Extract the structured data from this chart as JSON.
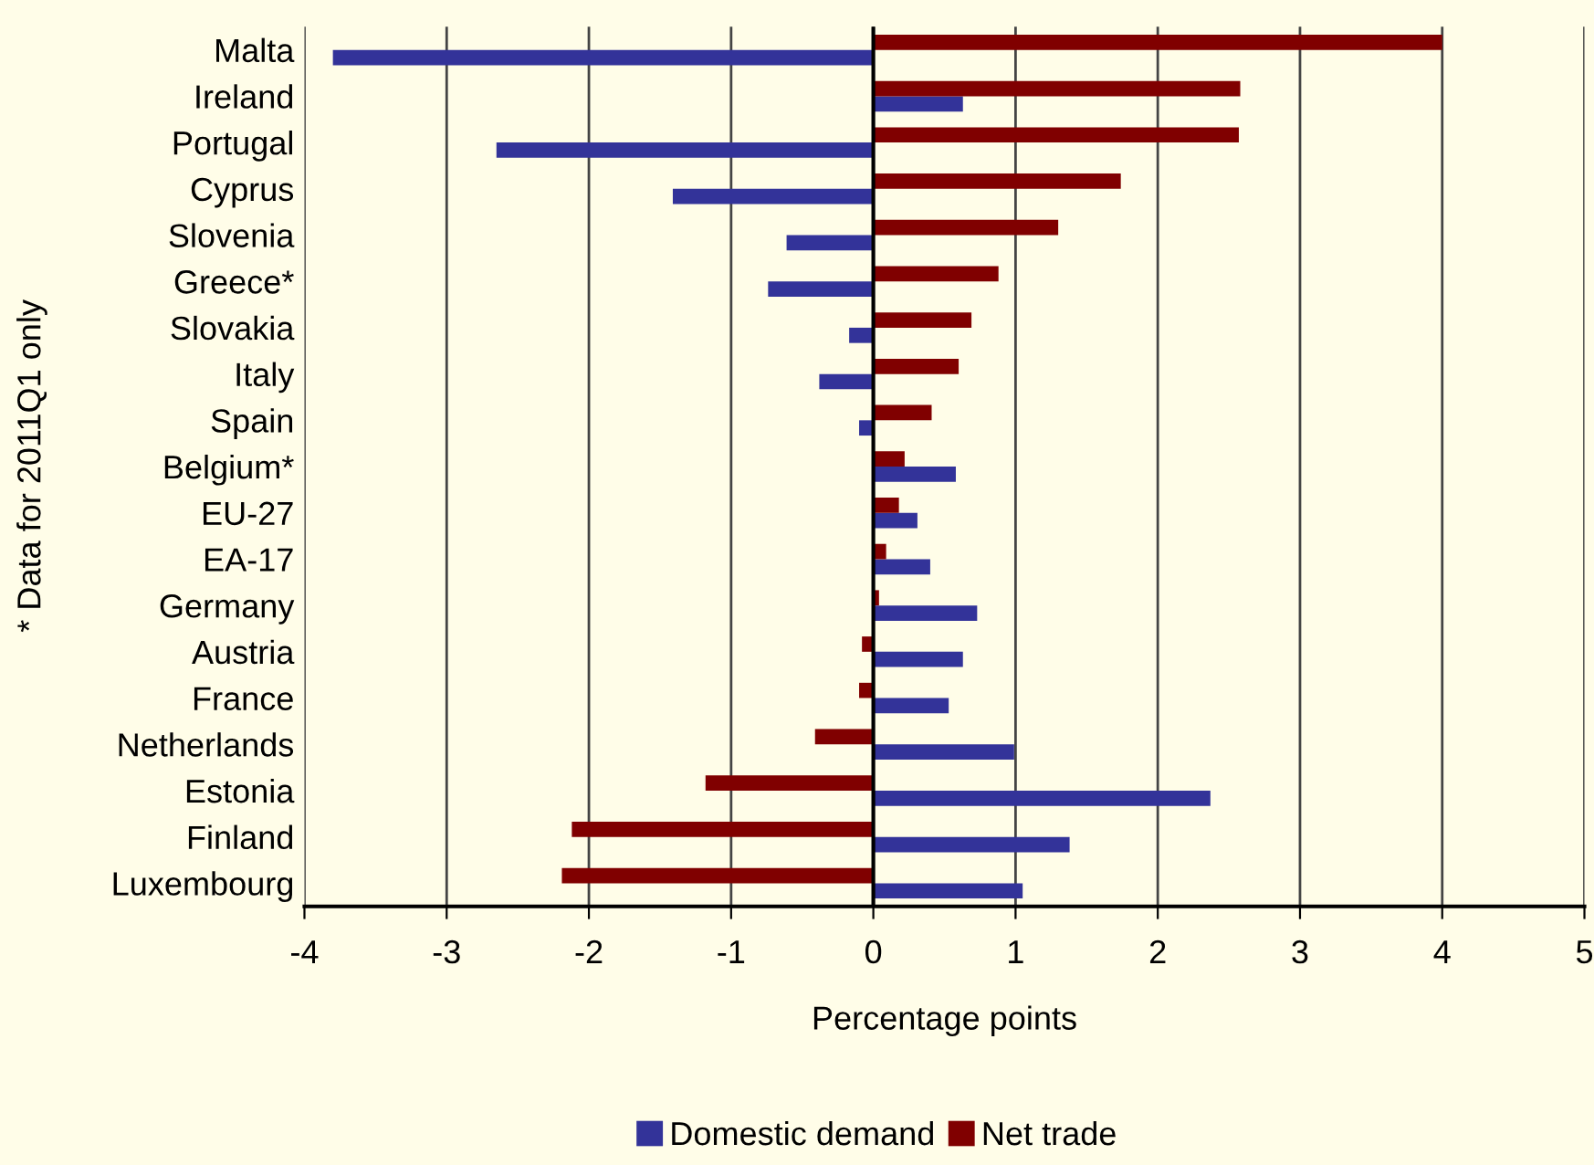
{
  "chart_data": {
    "type": "bar",
    "orientation": "horizontal",
    "xlabel": "Percentage points",
    "categories": [
      "Malta",
      "Ireland",
      "Portugal",
      "Cyprus",
      "Slovenia",
      "Greece*",
      "Slovakia",
      "Italy",
      "Spain",
      "Belgium*",
      "EU-27",
      "EA-17",
      "Germany",
      "Austria",
      "France",
      "Netherlands",
      "Estonia",
      "Finland",
      "Luxembourg"
    ],
    "series": [
      {
        "name": "Domestic demand",
        "color": "#333399",
        "values": [
          -3.8,
          0.63,
          -2.65,
          -1.41,
          -0.61,
          -0.74,
          -0.17,
          -0.38,
          -0.1,
          0.58,
          0.31,
          0.4,
          0.73,
          0.63,
          0.53,
          0.99,
          2.37,
          1.38,
          1.05
        ]
      },
      {
        "name": "Net trade",
        "color": "#800000",
        "values": [
          4.0,
          2.58,
          2.57,
          1.74,
          1.3,
          0.88,
          0.69,
          0.6,
          0.41,
          0.22,
          0.18,
          0.09,
          0.04,
          -0.08,
          -0.1,
          -0.41,
          -1.18,
          -2.12,
          -2.19
        ]
      }
    ],
    "xlim": [
      -4,
      5
    ],
    "xticks": [
      -4,
      -3,
      -2,
      -1,
      0,
      1,
      2,
      3,
      4,
      5
    ],
    "grid": "x",
    "legend": "bottom",
    "annotations": [
      "* Data for 2011Q1 only"
    ]
  }
}
